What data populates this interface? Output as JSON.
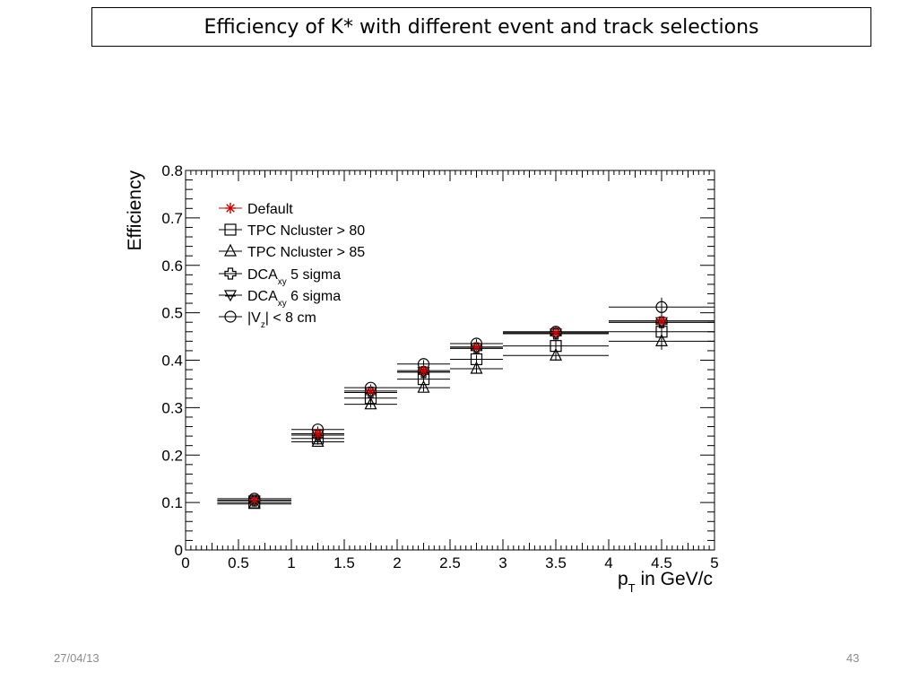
{
  "slide": {
    "title": "Efficiency of K*  with different event and track selections",
    "date": "27/04/13",
    "page_number": "43"
  },
  "chart_data": {
    "type": "scatter",
    "title": "",
    "xlabel": "p_T in GeV/c",
    "ylabel": "Efficiency",
    "xlim": [
      0,
      5
    ],
    "ylim": [
      0,
      0.8
    ],
    "xticks": [
      0,
      0.5,
      1,
      1.5,
      2,
      2.5,
      3,
      3.5,
      4,
      4.5,
      5
    ],
    "yticks": [
      0,
      0.1,
      0.2,
      0.3,
      0.4,
      0.5,
      0.6,
      0.7,
      0.8
    ],
    "grid": false,
    "legend_position": "top-left",
    "bins": [
      [
        0.3,
        1.0
      ],
      [
        1.0,
        1.5
      ],
      [
        1.5,
        2.0
      ],
      [
        2.0,
        2.5
      ],
      [
        2.5,
        3.0
      ],
      [
        3.0,
        4.0
      ],
      [
        4.0,
        5.0
      ]
    ],
    "x": [
      0.65,
      1.25,
      1.75,
      2.25,
      2.75,
      3.5,
      4.5
    ],
    "series": [
      {
        "name": "Default",
        "marker": "star",
        "color": "#cc0000",
        "values": [
          0.105,
          0.245,
          0.335,
          0.378,
          0.428,
          0.458,
          0.483
        ],
        "errors": [
          0.004,
          0.006,
          0.007,
          0.008,
          0.009,
          0.011,
          0.018
        ]
      },
      {
        "name": "TPC Ncluster > 80",
        "marker": "open-square",
        "color": "#000000",
        "values": [
          0.1,
          0.235,
          0.32,
          0.36,
          0.402,
          0.43,
          0.46
        ],
        "errors": [
          0.004,
          0.006,
          0.007,
          0.008,
          0.009,
          0.011,
          0.018
        ]
      },
      {
        "name": "TPC Ncluster > 85",
        "marker": "open-triangle",
        "color": "#000000",
        "values": [
          0.097,
          0.228,
          0.307,
          0.342,
          0.382,
          0.41,
          0.44
        ],
        "errors": [
          0.004,
          0.006,
          0.007,
          0.008,
          0.009,
          0.011,
          0.018
        ]
      },
      {
        "name": "DCA_xy 5 sigma",
        "marker": "open-cross",
        "color": "#000000",
        "values": [
          0.104,
          0.242,
          0.332,
          0.375,
          0.425,
          0.456,
          0.48
        ],
        "errors": [
          0.004,
          0.006,
          0.007,
          0.008,
          0.009,
          0.011,
          0.018
        ]
      },
      {
        "name": "DCA_xy 6 sigma",
        "marker": "open-down-triangle-star",
        "color": "#000000",
        "values": [
          0.104,
          0.242,
          0.332,
          0.375,
          0.425,
          0.456,
          0.48
        ],
        "errors": [
          0.004,
          0.006,
          0.007,
          0.008,
          0.009,
          0.011,
          0.018
        ]
      },
      {
        "name": "|V_z| < 8 cm",
        "marker": "open-circle",
        "color": "#000000",
        "values": [
          0.108,
          0.254,
          0.342,
          0.392,
          0.435,
          0.46,
          0.512
        ],
        "errors": [
          0.004,
          0.006,
          0.007,
          0.008,
          0.009,
          0.011,
          0.02
        ]
      }
    ]
  }
}
